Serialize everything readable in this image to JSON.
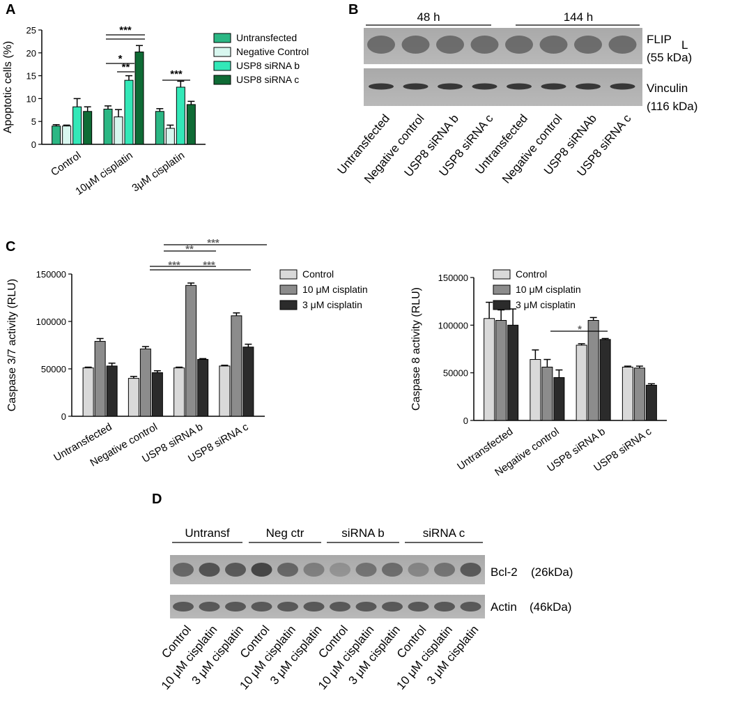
{
  "panels": {
    "a": "A",
    "b": "B",
    "c": "C",
    "d": "D"
  },
  "chart_data": [
    {
      "id": "A",
      "type": "bar",
      "ylabel": "Apoptotic cells (%)",
      "ylim": [
        0,
        25
      ],
      "yticks": [
        0,
        5,
        10,
        15,
        20,
        25
      ],
      "categories": [
        "Control",
        "10μM cisplatin",
        "3μM cisplatin"
      ],
      "series": [
        {
          "name": "Untransfected",
          "color": "#2bb784",
          "values": [
            4.0,
            7.7,
            7.2
          ],
          "errors": [
            0.3,
            0.7,
            0.6
          ]
        },
        {
          "name": "Negative Control",
          "color": "#d8f7ef",
          "values": [
            4.0,
            6.0,
            3.5
          ],
          "errors": [
            0.2,
            1.6,
            0.7
          ]
        },
        {
          "name": "USP8 siRNA b",
          "color": "#33e8b8",
          "values": [
            8.2,
            14.0,
            12.5
          ],
          "errors": [
            1.8,
            1.0,
            1.3
          ]
        },
        {
          "name": "USP8 siRNA c",
          "color": "#0f6b35",
          "values": [
            7.2,
            20.2,
            8.7
          ],
          "errors": [
            1.0,
            1.4,
            0.7
          ]
        }
      ],
      "significance": [
        "***",
        "*",
        "**",
        "***"
      ]
    },
    {
      "id": "C-left",
      "type": "bar",
      "ylabel": "Caspase 3/7 activity (RLU)",
      "ylim": [
        0,
        150000
      ],
      "yticks": [
        0,
        50000,
        100000,
        150000
      ],
      "categories": [
        "Untransfected",
        "Negative control",
        "USP8 siRNA b",
        "USP8 siRNA c"
      ],
      "series": [
        {
          "name": "Control",
          "color": "#d9d9d9",
          "values": [
            51000,
            40000,
            51000,
            53000
          ],
          "errors": [
            800,
            2000,
            800,
            800
          ]
        },
        {
          "name": "10 μM cisplatin",
          "color": "#8c8c8c",
          "values": [
            79000,
            71000,
            138000,
            106000
          ],
          "errors": [
            3000,
            2500,
            2500,
            3000
          ]
        },
        {
          "name": "3 μM cisplatin",
          "color": "#2b2b2b",
          "values": [
            53000,
            46000,
            60000,
            73000
          ],
          "errors": [
            3000,
            2000,
            800,
            3000
          ]
        }
      ],
      "significance": [
        "***",
        "**",
        "***",
        "***"
      ]
    },
    {
      "id": "C-right",
      "type": "bar",
      "ylabel": "Caspase 8 activity (RLU)",
      "ylim": [
        0,
        150000
      ],
      "yticks": [
        0,
        50000,
        100000,
        150000
      ],
      "categories": [
        "Untransfected",
        "Negative control",
        "USP8 siRNA b",
        "USP8 siRNA c"
      ],
      "series": [
        {
          "name": "Control",
          "color": "#d9d9d9",
          "values": [
            107000,
            64000,
            79000,
            56000
          ],
          "errors": [
            17000,
            10000,
            1500,
            1000
          ]
        },
        {
          "name": "10 μM cisplatin",
          "color": "#8c8c8c",
          "values": [
            105000,
            56000,
            105000,
            55000
          ],
          "errors": [
            11000,
            8000,
            3000,
            2000
          ]
        },
        {
          "name": "3 μM cisplatin",
          "color": "#2b2b2b",
          "values": [
            100000,
            45000,
            85000,
            37000
          ],
          "errors": [
            17000,
            8000,
            1000,
            1500
          ]
        }
      ],
      "significance": [
        "*"
      ]
    }
  ],
  "blot_b": {
    "groups": [
      "48 h",
      "144 h"
    ],
    "row_labels": [
      {
        "main": "FLIP",
        "sub": "L",
        "kda": "(55 kDa)"
      },
      {
        "main": "Vinculin",
        "sub": "",
        "kda": "(116 kDa)"
      }
    ],
    "lanes": [
      "Untransfected",
      "Negative control",
      "USP8 siRNA b",
      "USP8 siRNA c",
      "Untransfected",
      "Negative control",
      "USP8 siRNAb",
      "USP8 siRNA c"
    ]
  },
  "blot_d": {
    "groups": [
      "Untransf",
      "Neg ctr",
      "siRNA b",
      "siRNA c"
    ],
    "row_labels": [
      {
        "main": "Bcl-2",
        "kda": "(26kDa)"
      },
      {
        "main": "Actin",
        "kda": "(46kDa)"
      }
    ],
    "lanes": [
      "Control",
      "10 μM cisplatin",
      "3 μM cisplatin",
      "Control",
      "10 μM cisplatin",
      "3 μM cisplatin",
      "Control",
      "10 μM cisplatin",
      "3 μM cisplatin",
      "Control",
      "10 μM cisplatin",
      "3 μM cisplatin"
    ]
  }
}
